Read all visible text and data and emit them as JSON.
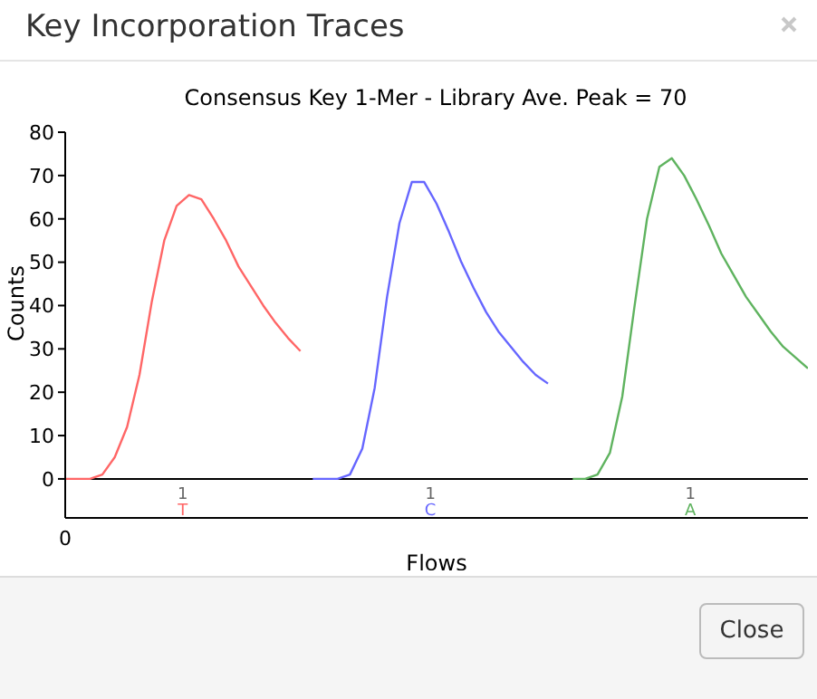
{
  "chart_data": {
    "type": "line",
    "title": "Key Incorporation Traces",
    "subtitle": "Consensus Key 1-Mer - Library Ave. Peak = 70",
    "xlabel": "Flows",
    "ylabel": "Counts",
    "annotations": [
      "1",
      "1",
      "1",
      "Close"
    ],
    "categories": [
      "0",
      null,
      null,
      null,
      null,
      null,
      null,
      null,
      null,
      null,
      null,
      null,
      null,
      null,
      null,
      null,
      null,
      null,
      null,
      null,
      null,
      null,
      null,
      null,
      null,
      null,
      null,
      null,
      null,
      null,
      null,
      null,
      null,
      null,
      null,
      null,
      null,
      null,
      null,
      null,
      null,
      null,
      null,
      null,
      null,
      null,
      null,
      null,
      null,
      null,
      null,
      null,
      null,
      null,
      null,
      null,
      null,
      null,
      null,
      null,
      null
    ],
    "ylim": [
      -9,
      80
    ],
    "yticks": [
      0,
      10,
      20,
      30,
      40,
      50,
      60,
      70,
      80
    ],
    "marker": "none",
    "line_style": "solid",
    "ref_lines": [
      {
        "axis": "y",
        "value": 0,
        "color": "#000000"
      }
    ],
    "series": [
      {
        "name": "T",
        "color": "#ff6666",
        "values": [
          0,
          0,
          0,
          1,
          5,
          12,
          24,
          41,
          55,
          63,
          65.5,
          64.5,
          60,
          55,
          49,
          44.5,
          40,
          36,
          32.5,
          29.5,
          null,
          null,
          null,
          null,
          null,
          null,
          null,
          null,
          null,
          null,
          null,
          null,
          null,
          null,
          null,
          null,
          null,
          null,
          null,
          null,
          null,
          null,
          null,
          null,
          null,
          null,
          null,
          null,
          null,
          null,
          null,
          null,
          null,
          null,
          null,
          null,
          null,
          null,
          null,
          null,
          null
        ]
      },
      {
        "name": "C",
        "color": "#6666ff",
        "values": [
          null,
          null,
          null,
          null,
          null,
          null,
          null,
          null,
          null,
          null,
          null,
          null,
          null,
          null,
          null,
          null,
          null,
          null,
          null,
          null,
          0,
          0,
          0,
          1,
          7,
          21,
          42,
          59,
          68.5,
          68.5,
          63.5,
          57,
          50,
          44,
          38.5,
          34,
          30.5,
          27,
          24,
          22,
          null,
          null,
          null,
          null,
          null,
          null,
          null,
          null,
          null,
          null,
          null,
          null,
          null,
          null,
          null,
          null,
          null,
          null,
          null,
          null,
          null
        ]
      },
      {
        "name": "A",
        "color": "#5fb35f",
        "values": [
          null,
          null,
          null,
          null,
          null,
          null,
          null,
          null,
          null,
          null,
          null,
          null,
          null,
          null,
          null,
          null,
          null,
          null,
          null,
          null,
          null,
          null,
          null,
          null,
          null,
          null,
          null,
          null,
          null,
          null,
          null,
          null,
          null,
          null,
          null,
          null,
          null,
          null,
          null,
          null,
          null,
          0,
          0,
          1,
          6,
          19,
          40,
          60,
          72,
          74,
          70,
          64.5,
          58.5,
          52,
          47,
          42,
          38,
          34,
          30.5,
          28,
          25.5
        ]
      }
    ]
  }
}
